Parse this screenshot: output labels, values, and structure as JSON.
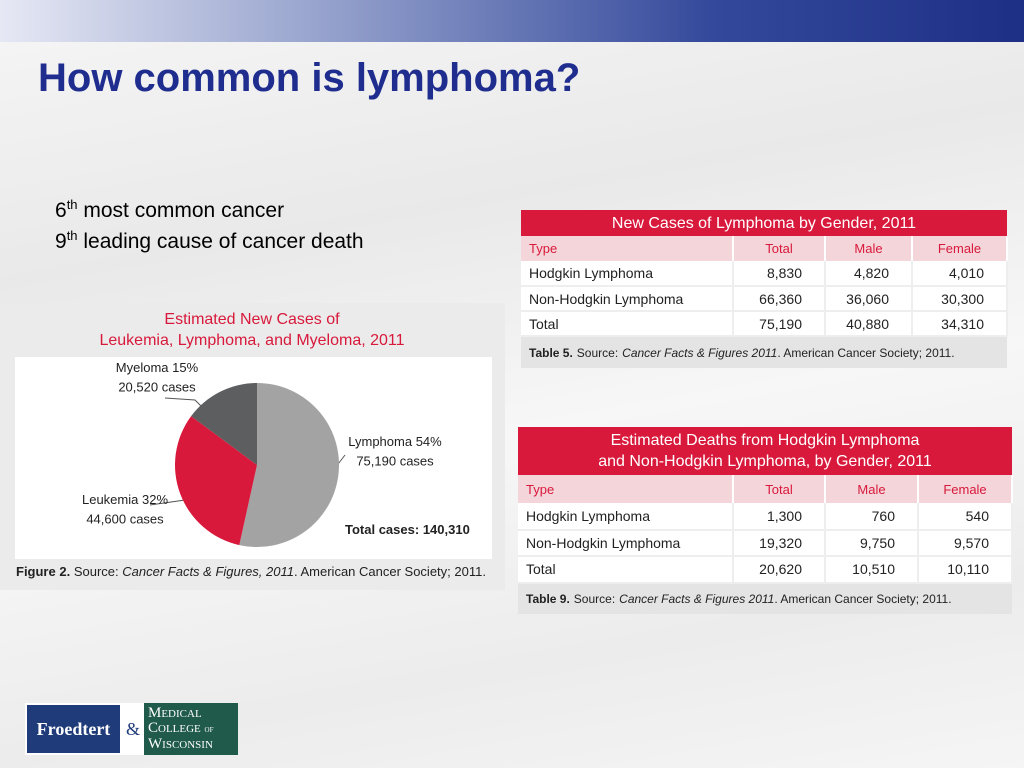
{
  "header": {
    "title": "How common is lymphoma?"
  },
  "bullets": [
    {
      "number": "6",
      "suffix": "th",
      "text": "most common cancer"
    },
    {
      "number": "9",
      "suffix": "th",
      "text": "leading cause of cancer death"
    }
  ],
  "chart_data": {
    "type": "pie",
    "title": [
      "Estimated New Cases of",
      "Leukemia, Lymphoma, and Myeloma, 2011"
    ],
    "categories": [
      "Lymphoma",
      "Leukemia",
      "Myeloma"
    ],
    "values": [
      54,
      32,
      15
    ],
    "value_labels": [
      "54%",
      "32%",
      "15%"
    ],
    "case_labels": [
      "75,190 cases",
      "44,600 cases",
      "20,520 cases"
    ],
    "colors": [
      "#a3a3a3",
      "#d8193b",
      "#5d5e60"
    ],
    "total_label": "Total cases:",
    "total": "140,310",
    "caption": {
      "label": "Figure 2.",
      "source": "Source:",
      "work": "Cancer Facts & Figures, 2011",
      "publisher": ". American Cancer Society; 2011."
    }
  },
  "tables": [
    {
      "title": [
        "New Cases of Lymphoma by Gender, 2011"
      ],
      "columns": [
        "Type",
        "Total",
        "Male",
        "Female"
      ],
      "rows": [
        [
          "Hodgkin Lymphoma",
          "8,830",
          "4,820",
          "4,010"
        ],
        [
          "Non-Hodgkin Lymphoma",
          "66,360",
          "36,060",
          "30,300"
        ],
        [
          "Total",
          "75,190",
          "40,880",
          "34,310"
        ]
      ],
      "caption": {
        "label": "Table 5.",
        "source": "Source:",
        "work": "Cancer Facts & Figures 2011",
        "publisher": ". American Cancer Society; 2011."
      }
    },
    {
      "title": [
        "Estimated Deaths from Hodgkin Lymphoma",
        "and Non-Hodgkin Lymphoma, by Gender, 2011"
      ],
      "columns": [
        "Type",
        "Total",
        "Male",
        "Female"
      ],
      "rows": [
        [
          "Hodgkin Lymphoma",
          "1,300",
          "760",
          "540"
        ],
        [
          "Non-Hodgkin Lymphoma",
          "19,320",
          "9,750",
          "9,570"
        ],
        [
          "Total",
          "20,620",
          "10,510",
          "10,110"
        ]
      ],
      "caption": {
        "label": "Table 9.",
        "source": "Source:",
        "work": "Cancer Facts & Figures 2011",
        "publisher": ". American Cancer Society; 2011."
      }
    }
  ],
  "logo": {
    "left": "Froedtert",
    "amp": "&",
    "right": [
      "Medical",
      "College",
      "of",
      "Wisconsin"
    ]
  }
}
